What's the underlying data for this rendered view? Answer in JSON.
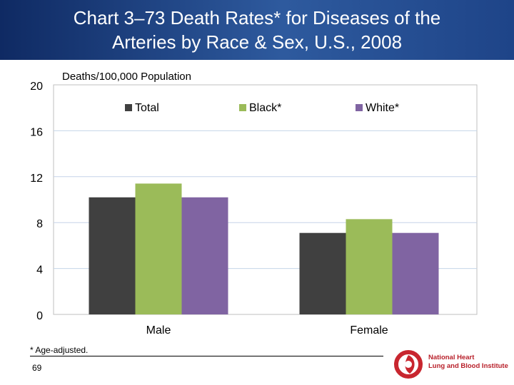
{
  "title_line1": "Chart 3–73 Death Rates* for Diseases of the",
  "title_line2": "Arteries by Race & Sex, U.S., 2008",
  "footnote": "* Age-adjusted.",
  "page_number": "69",
  "logo": {
    "line1": "National Heart",
    "line2": "Lung and Blood Institute",
    "icon": "nhlbi-logo-icon"
  },
  "colors": {
    "header": "#1e3f7d",
    "total": "#404040",
    "black": "#9bbb59",
    "white": "#8064a2"
  },
  "chart_data": {
    "type": "bar",
    "ylabel": "Deaths/100,000 Population",
    "ylim": [
      0,
      20
    ],
    "yticks": [
      "0",
      "4",
      "8",
      "12",
      "16",
      "20"
    ],
    "categories": [
      "Male",
      "Female"
    ],
    "series": [
      {
        "name": "Total",
        "values": [
          10.2,
          7.1
        ],
        "color": "#404040"
      },
      {
        "name": "Black*",
        "values": [
          11.4,
          8.3
        ],
        "color": "#9bbb59"
      },
      {
        "name": "White*",
        "values": [
          10.2,
          7.1
        ],
        "color": "#8064a2"
      }
    ],
    "legend": "top",
    "grid": true
  }
}
